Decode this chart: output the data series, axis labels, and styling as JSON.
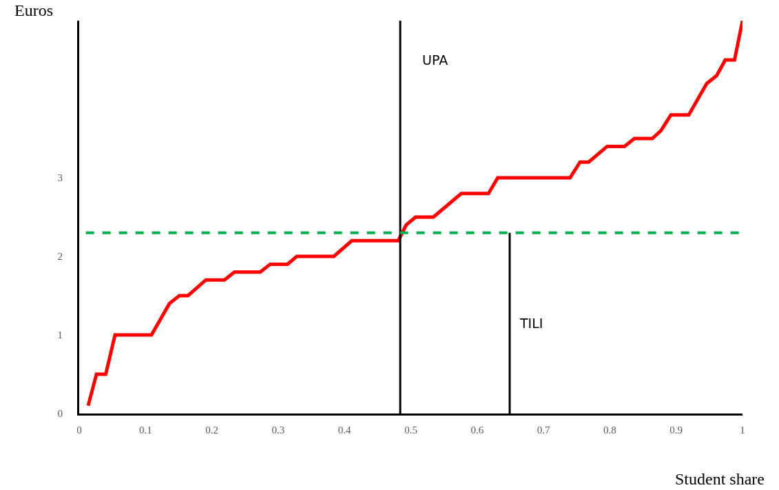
{
  "chart_data": {
    "type": "line",
    "xlabel": "Student share",
    "ylabel": "Euros",
    "x": [
      0.0135,
      0.026,
      0.04,
      0.054,
      0.109,
      0.136,
      0.151,
      0.164,
      0.191,
      0.219,
      0.234,
      0.273,
      0.288,
      0.314,
      0.328,
      0.384,
      0.411,
      0.481,
      0.493,
      0.507,
      0.534,
      0.576,
      0.617,
      0.631,
      0.74,
      0.755,
      0.768,
      0.796,
      0.822,
      0.837,
      0.864,
      0.877,
      0.892,
      0.919,
      0.946,
      0.961,
      0.974,
      0.988,
      1.0
    ],
    "series": [
      {
        "color": "#ff0000",
        "values": [
          0.1,
          0.5,
          0.5,
          1.0,
          1.0,
          1.4,
          1.5,
          1.5,
          1.7,
          1.7,
          1.8,
          1.8,
          1.9,
          1.9,
          2.0,
          2.0,
          2.2,
          2.2,
          2.4,
          2.5,
          2.5,
          2.8,
          2.8,
          3.0,
          3.0,
          3.2,
          3.2,
          3.4,
          3.4,
          3.5,
          3.5,
          3.6,
          3.8,
          3.8,
          4.2,
          4.3,
          4.5,
          4.5,
          5.0
        ]
      },
      {
        "name": "TILI",
        "color": "#000000",
        "x": [
          0.649,
          0.649
        ],
        "values": [
          0,
          2.3
        ]
      }
    ],
    "ref_lines": [
      {
        "axis": "x",
        "value": 0.484,
        "label": "UPA",
        "color": "#000000",
        "line_style": "solid"
      },
      {
        "axis": "y",
        "value": 2.3,
        "color": "#00b050",
        "line_style": "dashed"
      }
    ],
    "xlim": [
      0,
      1
    ],
    "ylim": [
      0,
      5
    ],
    "xticks": [
      0,
      0.1,
      0.2,
      0.3,
      0.4,
      0.5,
      0.6,
      0.7,
      0.8,
      0.9,
      1
    ],
    "yticks": [
      0,
      1,
      2,
      3
    ],
    "legend": false,
    "marker": "none",
    "line_style": "solid"
  }
}
